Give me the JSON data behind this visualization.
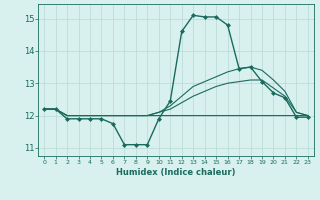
{
  "title": "",
  "xlabel": "Humidex (Indice chaleur)",
  "x_values": [
    0,
    1,
    2,
    3,
    4,
    5,
    6,
    7,
    8,
    9,
    10,
    11,
    12,
    13,
    14,
    15,
    16,
    17,
    18,
    19,
    20,
    21,
    22,
    23
  ],
  "series": [
    {
      "y": [
        12.2,
        12.2,
        11.9,
        11.9,
        11.9,
        11.9,
        11.75,
        11.1,
        11.1,
        11.1,
        11.9,
        12.45,
        14.6,
        15.1,
        15.05,
        15.05,
        14.8,
        13.45,
        13.5,
        13.05,
        12.7,
        12.55,
        11.95,
        11.95
      ],
      "color": "#1a6b5e",
      "marker": "D",
      "markersize": 2.0,
      "linewidth": 1.0
    },
    {
      "y": [
        12.2,
        12.2,
        12.0,
        12.0,
        12.0,
        12.0,
        12.0,
        12.0,
        12.0,
        12.0,
        12.0,
        12.0,
        12.0,
        12.0,
        12.0,
        12.0,
        12.0,
        12.0,
        12.0,
        12.0,
        12.0,
        12.0,
        12.0,
        12.0
      ],
      "color": "#1a6b5e",
      "marker": null,
      "markersize": 0,
      "linewidth": 0.8
    },
    {
      "y": [
        12.2,
        12.2,
        12.0,
        12.0,
        12.0,
        12.0,
        12.0,
        12.0,
        12.0,
        12.0,
        12.1,
        12.2,
        12.4,
        12.6,
        12.75,
        12.9,
        13.0,
        13.05,
        13.1,
        13.1,
        12.85,
        12.6,
        12.1,
        12.0
      ],
      "color": "#1a6b5e",
      "marker": null,
      "markersize": 0,
      "linewidth": 0.8
    },
    {
      "y": [
        12.2,
        12.2,
        12.0,
        12.0,
        12.0,
        12.0,
        12.0,
        12.0,
        12.0,
        12.0,
        12.1,
        12.3,
        12.6,
        12.9,
        13.05,
        13.2,
        13.35,
        13.45,
        13.5,
        13.4,
        13.1,
        12.75,
        12.1,
        12.0
      ],
      "color": "#1a6b5e",
      "marker": null,
      "markersize": 0,
      "linewidth": 0.8
    }
  ],
  "ylim": [
    10.75,
    15.45
  ],
  "yticks": [
    11,
    12,
    13,
    14,
    15
  ],
  "xlim": [
    -0.5,
    23.5
  ],
  "xticks": [
    0,
    1,
    2,
    3,
    4,
    5,
    6,
    7,
    8,
    9,
    10,
    11,
    12,
    13,
    14,
    15,
    16,
    17,
    18,
    19,
    20,
    21,
    22,
    23
  ],
  "bg_color": "#d8f0ee",
  "grid_color": "#b8d8d4",
  "axis_color": "#1a6b5e",
  "tick_color": "#1a6b5e",
  "label_color": "#1a6b5e"
}
